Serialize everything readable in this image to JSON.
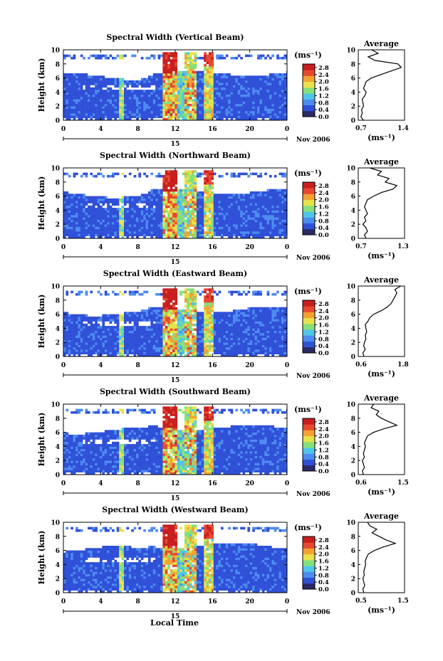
{
  "figure": {
    "common_xlabel": "Local Time",
    "date_label": "Nov 2006",
    "day_label": "15",
    "colorbar_unit": "(ms⁻¹)",
    "colorbar_ticks": [
      "2.8",
      "2.4",
      "2.0",
      "1.6",
      "1.2",
      "0.8",
      "0.4",
      "0.0"
    ],
    "avg_title": "Average",
    "avg_unit": "(ms⁻¹)"
  },
  "colors": {
    "colormap": [
      "#2a2a66",
      "#3050d8",
      "#4c8cf0",
      "#4fc6e8",
      "#86e07a",
      "#e8e24a",
      "#f3a232",
      "#e84830",
      "#c81e1e"
    ]
  },
  "chart_data": [
    {
      "type": "heatmap",
      "title": "Spectral Width (Vertical Beam)",
      "ylabel": "Height (km)",
      "x_ticks": [
        "0",
        "4",
        "8",
        "12",
        "16",
        "20",
        "0"
      ],
      "y_ticks": [
        "0",
        "2",
        "4",
        "6",
        "8",
        "10"
      ],
      "xlim": [
        0,
        24
      ],
      "ylim": [
        0,
        10
      ],
      "cbar_range": [
        0,
        3.0
      ],
      "average_profile": {
        "xlim": [
          0.7,
          1.4
        ],
        "x_ticks": [
          "0.7",
          "1.4"
        ],
        "y_ticks": [
          "0",
          "2",
          "4",
          "6",
          "8",
          "10"
        ],
        "height": [
          0,
          0.5,
          1,
          1.5,
          2,
          2.5,
          3,
          3.5,
          4,
          4.5,
          5,
          5.5,
          6,
          6.5,
          7,
          7.5,
          8,
          8.5,
          9,
          9.5,
          10
        ],
        "value": [
          0.78,
          0.74,
          0.76,
          0.75,
          0.78,
          0.77,
          0.76,
          0.8,
          0.82,
          0.78,
          0.8,
          0.82,
          0.9,
          1.05,
          1.2,
          1.35,
          1.3,
          0.95,
          0.85,
          1.0,
          0.9
        ]
      }
    },
    {
      "type": "heatmap",
      "title": "Spectral Width (Northward Beam)",
      "ylabel": "Height (km)",
      "x_ticks": [
        "0",
        "4",
        "8",
        "12",
        "16",
        "20",
        "0"
      ],
      "y_ticks": [
        "0",
        "2",
        "4",
        "6",
        "8",
        "10"
      ],
      "xlim": [
        0,
        24
      ],
      "ylim": [
        0,
        10
      ],
      "cbar_range": [
        0,
        3.0
      ],
      "average_profile": {
        "xlim": [
          0.7,
          1.3
        ],
        "x_ticks": [
          "0.7",
          "1.3"
        ],
        "y_ticks": [
          "0",
          "2",
          "4",
          "6",
          "8",
          "10"
        ],
        "height": [
          0,
          0.5,
          1,
          1.5,
          2,
          2.5,
          3,
          3.5,
          4,
          4.5,
          5,
          5.5,
          6,
          6.5,
          7,
          7.5,
          8,
          8.5,
          9,
          9.5,
          10
        ],
        "value": [
          0.8,
          0.78,
          0.82,
          0.8,
          0.76,
          0.8,
          0.78,
          0.82,
          0.8,
          0.78,
          0.8,
          0.82,
          0.9,
          1.0,
          1.15,
          1.2,
          1.05,
          1.1,
          0.95,
          1.0,
          0.85
        ]
      }
    },
    {
      "type": "heatmap",
      "title": "Spectral Width (Eastward Beam)",
      "ylabel": "Height (km)",
      "x_ticks": [
        "0",
        "4",
        "8",
        "12",
        "16",
        "20",
        "0"
      ],
      "y_ticks": [
        "0",
        "2",
        "4",
        "6",
        "8",
        "10"
      ],
      "xlim": [
        0,
        24
      ],
      "ylim": [
        0,
        10
      ],
      "cbar_range": [
        0,
        3.0
      ],
      "average_profile": {
        "xlim": [
          0.6,
          1.8
        ],
        "x_ticks": [
          "0.6",
          "1.8"
        ],
        "y_ticks": [
          "0",
          "2",
          "4",
          "6",
          "8",
          "10"
        ],
        "height": [
          0,
          0.5,
          1,
          1.5,
          2,
          2.5,
          3,
          3.5,
          4,
          4.5,
          5,
          5.5,
          6,
          6.5,
          7,
          7.5,
          8,
          8.5,
          9,
          9.5,
          10
        ],
        "value": [
          0.75,
          0.72,
          0.78,
          0.74,
          0.76,
          0.8,
          0.78,
          0.82,
          0.8,
          0.78,
          0.85,
          0.9,
          1.0,
          1.2,
          1.35,
          1.45,
          1.5,
          1.55,
          1.6,
          1.55,
          1.7
        ]
      }
    },
    {
      "type": "heatmap",
      "title": "Spectral Width (Southward Beam)",
      "ylabel": "Height (km)",
      "x_ticks": [
        "0",
        "4",
        "8",
        "12",
        "16",
        "20",
        "0"
      ],
      "y_ticks": [
        "0",
        "2",
        "4",
        "6",
        "8",
        "10"
      ],
      "xlim": [
        0,
        24
      ],
      "ylim": [
        0,
        10
      ],
      "cbar_range": [
        0,
        3.0
      ],
      "average_profile": {
        "xlim": [
          0.6,
          1.5
        ],
        "x_ticks": [
          "0.6",
          "1.5"
        ],
        "y_ticks": [
          "0",
          "2",
          "4",
          "6",
          "8",
          "10"
        ],
        "height": [
          0,
          0.5,
          1,
          1.5,
          2,
          2.5,
          3,
          3.5,
          4,
          4.5,
          5,
          5.5,
          6,
          6.5,
          7,
          7.5,
          8,
          8.5,
          9,
          9.5,
          10
        ],
        "value": [
          0.7,
          0.68,
          0.72,
          0.7,
          0.68,
          0.72,
          0.7,
          0.72,
          0.74,
          0.72,
          0.75,
          0.78,
          0.9,
          1.1,
          1.35,
          1.2,
          1.05,
          0.95,
          1.0,
          0.85,
          0.9
        ]
      }
    },
    {
      "type": "heatmap",
      "title": "Spectral Width (Westward Beam)",
      "ylabel": "Height (km)",
      "x_ticks": [
        "0",
        "4",
        "8",
        "12",
        "16",
        "20",
        "0"
      ],
      "y_ticks": [
        "0",
        "2",
        "4",
        "6",
        "8",
        "10"
      ],
      "xlim": [
        0,
        24
      ],
      "ylim": [
        0,
        10
      ],
      "cbar_range": [
        0,
        3.0
      ],
      "average_profile": {
        "xlim": [
          0.5,
          1.5
        ],
        "x_ticks": [
          "0.5",
          "1.5"
        ],
        "y_ticks": [
          "0",
          "2",
          "4",
          "6",
          "8",
          "10"
        ],
        "height": [
          0,
          0.5,
          1,
          1.5,
          2,
          2.5,
          3,
          3.5,
          4,
          4.5,
          5,
          5.5,
          6,
          6.5,
          7,
          7.5,
          8,
          8.5,
          9,
          9.5,
          10
        ],
        "value": [
          0.62,
          0.6,
          0.64,
          0.62,
          0.6,
          0.63,
          0.62,
          0.64,
          0.66,
          0.65,
          0.68,
          0.72,
          0.85,
          1.05,
          1.3,
          1.1,
          0.95,
          0.8,
          0.9,
          0.75,
          0.7
        ]
      }
    }
  ]
}
